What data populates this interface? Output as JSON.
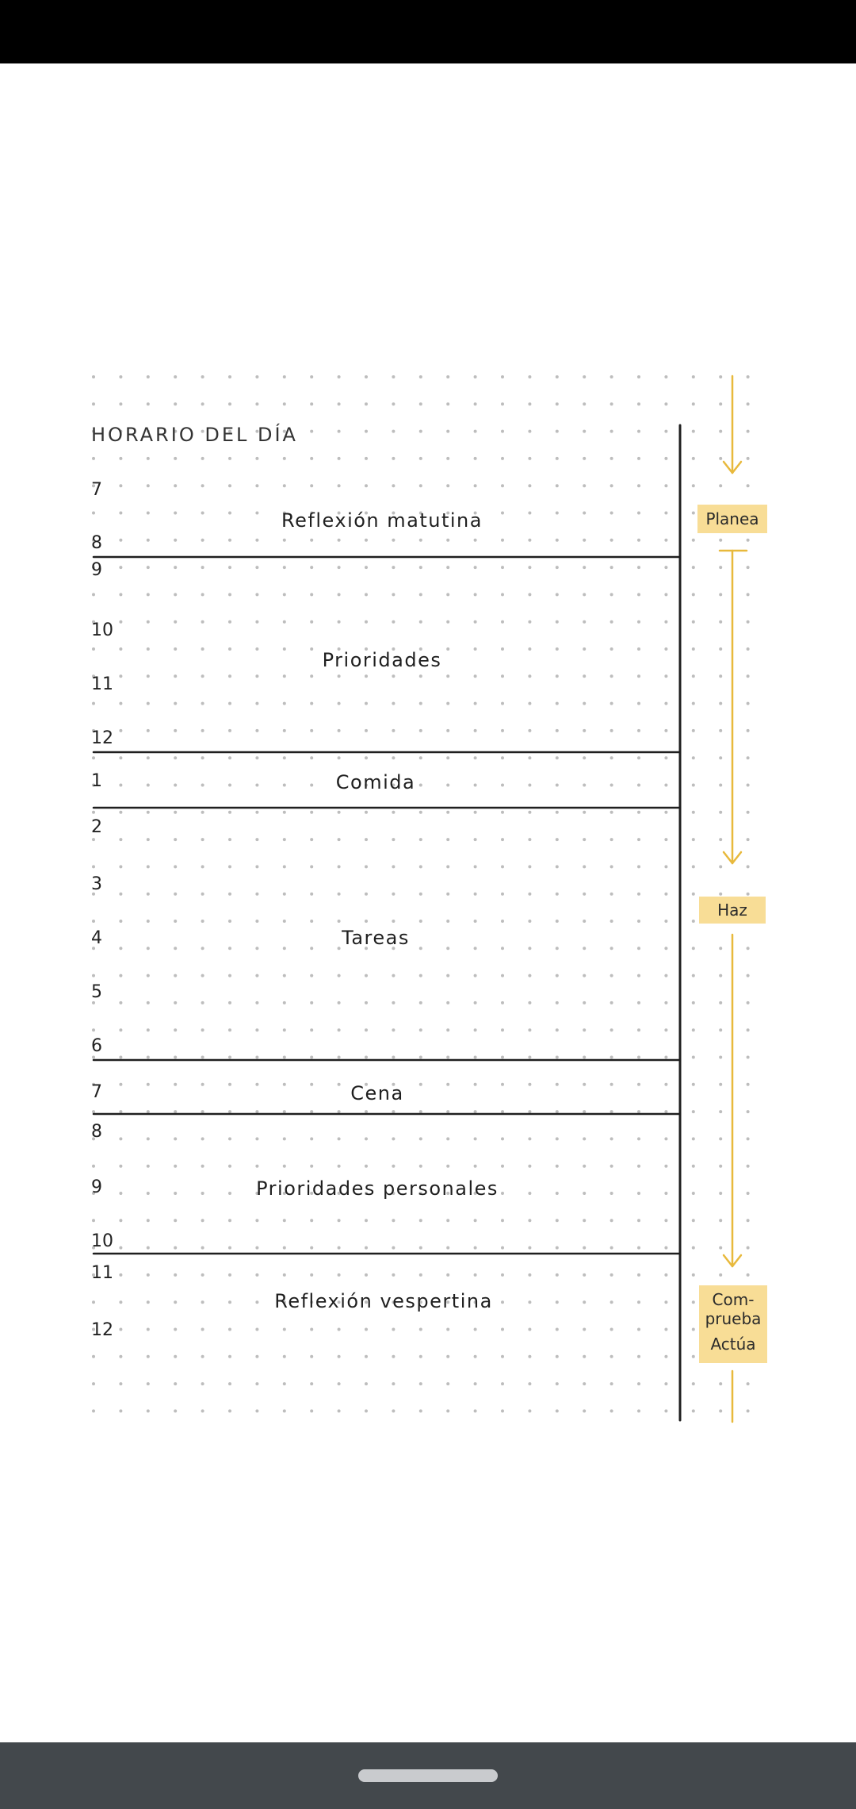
{
  "planner": {
    "title": "HORARIO DEL DÍA",
    "hours": [
      "7",
      "8",
      "9",
      "10",
      "11",
      "12",
      "1",
      "2",
      "3",
      "4",
      "5",
      "6",
      "7",
      "8",
      "9",
      "10",
      "11",
      "12"
    ],
    "blocks": [
      "Reflexión matutina",
      "Prioridades",
      "Comida",
      "Tareas",
      "Cena",
      "Prioridades personales",
      "Reflexión vespertina"
    ],
    "cycle": {
      "plan": "Planea",
      "do": "Haz",
      "check_line1": "Com-",
      "check_line2": "prueba",
      "act": "Actúa"
    }
  },
  "colors": {
    "accent_yellow": "#f8dd96",
    "arrow_yellow": "#e8b93c",
    "ink": "#1f1f1f",
    "dot": "#bdbdbd"
  }
}
